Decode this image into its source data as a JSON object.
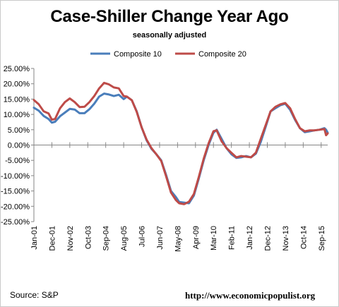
{
  "title": "Case-Shiller Change Year Ago",
  "subtitle": "seasonally  adjusted",
  "source": "Source: S&P",
  "url": "http://www.economicpopulist.org",
  "colors": {
    "composite10": "#4a7ebb",
    "composite20": "#be4b48",
    "axis": "#868686",
    "gridline": "#d9d9d9"
  },
  "chart_data": {
    "type": "line",
    "ylim": [
      -0.25,
      0.25
    ],
    "yticks": [
      0.25,
      0.2,
      0.15,
      0.1,
      0.05,
      0.0,
      -0.05,
      -0.1,
      -0.15,
      -0.2,
      -0.25
    ],
    "ytick_labels": [
      "25.00%",
      "20.00%",
      "15.00%",
      "10.00%",
      "5.00%",
      "0.00%",
      "-5.00%",
      "-10.00%",
      "-15.00%",
      "-20.00%",
      "-25.00%"
    ],
    "xtick_labels": [
      "Jan-01",
      "Dec-01",
      "Nov-02",
      "Oct-03",
      "Sep-04",
      "Aug-05",
      "Jul-06",
      "Jun-07",
      "May-08",
      "Apr-09",
      "Mar-10",
      "Feb-11",
      "Jan-12",
      "Dec-12",
      "Nov-13",
      "Oct-14",
      "Sep-15"
    ],
    "x_start": "Jan-01",
    "x_end": "Jan-16",
    "legend_position": "top",
    "series": [
      {
        "name": "Composite 10",
        "points": [
          [
            "Jan-01",
            0.122
          ],
          [
            "Apr-01",
            0.112
          ],
          [
            "Jul-01",
            0.095
          ],
          [
            "Oct-01",
            0.085
          ],
          [
            "Dec-01",
            0.073
          ],
          [
            "Feb-02",
            0.076
          ],
          [
            "May-02",
            0.094
          ],
          [
            "Aug-02",
            0.106
          ],
          [
            "Nov-02",
            0.118
          ],
          [
            "Feb-03",
            0.116
          ],
          [
            "May-03",
            0.104
          ],
          [
            "Aug-03",
            0.104
          ],
          [
            "Nov-03",
            0.117
          ],
          [
            "Feb-04",
            0.135
          ],
          [
            "May-04",
            0.158
          ],
          [
            "Aug-04",
            0.168
          ],
          [
            "Nov-04",
            0.165
          ],
          [
            "Feb-05",
            0.16
          ],
          [
            "May-05",
            0.164
          ],
          [
            "Aug-05",
            0.15
          ],
          [
            "Oct-05",
            0.158
          ],
          [
            "Jan-06",
            0.146
          ],
          [
            "Apr-06",
            0.11
          ],
          [
            "Jul-06",
            0.058
          ],
          [
            "Oct-06",
            0.016
          ],
          [
            "Jan-07",
            -0.012
          ],
          [
            "Apr-07",
            -0.03
          ],
          [
            "Jul-07",
            -0.05
          ],
          [
            "Oct-07",
            -0.098
          ],
          [
            "Jan-08",
            -0.15
          ],
          [
            "Apr-08",
            -0.17
          ],
          [
            "Jun-08",
            -0.186
          ],
          [
            "Sep-08",
            -0.188
          ],
          [
            "Dec-08",
            -0.19
          ],
          [
            "Mar-09",
            -0.165
          ],
          [
            "Jun-09",
            -0.11
          ],
          [
            "Sep-09",
            -0.05
          ],
          [
            "Dec-09",
            0.0
          ],
          [
            "Mar-10",
            0.04
          ],
          [
            "May-10",
            0.05
          ],
          [
            "Aug-10",
            0.02
          ],
          [
            "Nov-10",
            -0.01
          ],
          [
            "Feb-11",
            -0.03
          ],
          [
            "May-11",
            -0.042
          ],
          [
            "Aug-11",
            -0.04
          ],
          [
            "Nov-11",
            -0.036
          ],
          [
            "Feb-12",
            -0.04
          ],
          [
            "May-12",
            -0.028
          ],
          [
            "Aug-12",
            0.01
          ],
          [
            "Nov-12",
            0.06
          ],
          [
            "Feb-13",
            0.11
          ],
          [
            "May-13",
            0.12
          ],
          [
            "Aug-13",
            0.13
          ],
          [
            "Nov-13",
            0.135
          ],
          [
            "Feb-14",
            0.115
          ],
          [
            "May-14",
            0.082
          ],
          [
            "Aug-14",
            0.055
          ],
          [
            "Nov-14",
            0.042
          ],
          [
            "Feb-15",
            0.045
          ],
          [
            "May-15",
            0.048
          ],
          [
            "Aug-15",
            0.05
          ],
          [
            "Nov-15",
            0.055
          ],
          [
            "Dec-15",
            0.05
          ],
          [
            "Jan-16",
            0.04
          ]
        ]
      },
      {
        "name": "Composite 20",
        "points": [
          [
            "Jan-01",
            0.147
          ],
          [
            "Apr-01",
            0.133
          ],
          [
            "Jul-01",
            0.11
          ],
          [
            "Oct-01",
            0.103
          ],
          [
            "Dec-01",
            0.083
          ],
          [
            "Feb-02",
            0.085
          ],
          [
            "May-02",
            0.12
          ],
          [
            "Aug-02",
            0.14
          ],
          [
            "Nov-02",
            0.152
          ],
          [
            "Feb-03",
            0.14
          ],
          [
            "May-03",
            0.124
          ],
          [
            "Aug-03",
            0.125
          ],
          [
            "Nov-03",
            0.14
          ],
          [
            "Feb-04",
            0.16
          ],
          [
            "May-04",
            0.185
          ],
          [
            "Aug-04",
            0.203
          ],
          [
            "Nov-04",
            0.198
          ],
          [
            "Feb-05",
            0.188
          ],
          [
            "May-05",
            0.185
          ],
          [
            "Aug-05",
            0.16
          ],
          [
            "Oct-05",
            0.158
          ],
          [
            "Jan-06",
            0.146
          ],
          [
            "Apr-06",
            0.108
          ],
          [
            "Jul-06",
            0.058
          ],
          [
            "Oct-06",
            0.018
          ],
          [
            "Jan-07",
            -0.01
          ],
          [
            "Apr-07",
            -0.03
          ],
          [
            "Jul-07",
            -0.052
          ],
          [
            "Oct-07",
            -0.102
          ],
          [
            "Jan-08",
            -0.155
          ],
          [
            "Apr-08",
            -0.18
          ],
          [
            "Jun-08",
            -0.19
          ],
          [
            "Sep-08",
            -0.193
          ],
          [
            "Dec-08",
            -0.185
          ],
          [
            "Mar-09",
            -0.16
          ],
          [
            "Jun-09",
            -0.105
          ],
          [
            "Sep-09",
            -0.045
          ],
          [
            "Dec-09",
            0.005
          ],
          [
            "Mar-10",
            0.045
          ],
          [
            "May-10",
            0.048
          ],
          [
            "Aug-10",
            0.012
          ],
          [
            "Nov-10",
            -0.01
          ],
          [
            "Feb-11",
            -0.025
          ],
          [
            "May-11",
            -0.04
          ],
          [
            "Aug-11",
            -0.036
          ],
          [
            "Nov-11",
            -0.038
          ],
          [
            "Feb-12",
            -0.04
          ],
          [
            "May-12",
            -0.025
          ],
          [
            "Aug-12",
            0.02
          ],
          [
            "Nov-12",
            0.065
          ],
          [
            "Feb-13",
            0.11
          ],
          [
            "May-13",
            0.125
          ],
          [
            "Aug-13",
            0.133
          ],
          [
            "Nov-13",
            0.137
          ],
          [
            "Feb-14",
            0.12
          ],
          [
            "May-14",
            0.085
          ],
          [
            "Aug-14",
            0.055
          ],
          [
            "Nov-14",
            0.045
          ],
          [
            "Feb-15",
            0.048
          ],
          [
            "May-15",
            0.048
          ],
          [
            "Aug-15",
            0.05
          ],
          [
            "Nov-15",
            0.052
          ],
          [
            "Dec-15",
            0.032
          ],
          [
            "Jan-16",
            0.038
          ]
        ]
      }
    ]
  }
}
